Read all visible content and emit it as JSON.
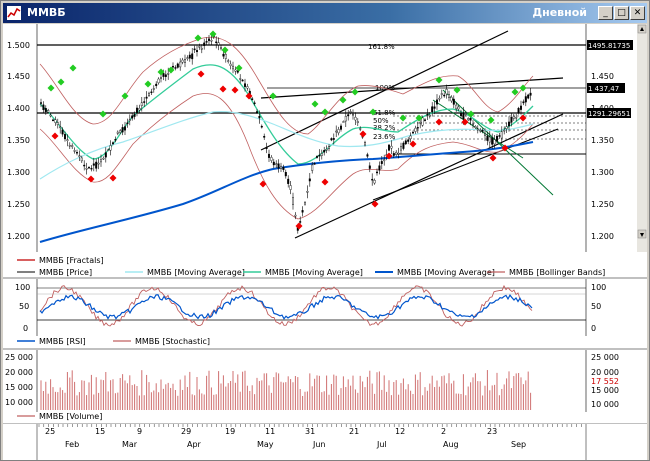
{
  "window": {
    "title": "ММВБ",
    "mode_label": "Дневной"
  },
  "window_buttons": {
    "minimize": "_",
    "maximize": "□",
    "close": "✕"
  },
  "price_panel": {
    "y_ticks_left": [
      "1.500",
      "1.450",
      "1.400",
      "1.350",
      "1.300",
      "1.250",
      "1.200"
    ],
    "y_ticks_right": [
      "1.450",
      "1.400",
      "1.350",
      "1.300",
      "1.250",
      "1.200"
    ],
    "value_boxes": [
      "1495.81735",
      "1 437,47",
      "1291.29651"
    ],
    "fib_labels": [
      "161.8%",
      "100%",
      "61.8%",
      "50%",
      "38.2%",
      "23.6%"
    ],
    "legend": [
      {
        "label": "ММВБ [Fractals]",
        "color": "#c00000"
      },
      {
        "label": "ММВБ [Price]",
        "color": "#000000"
      },
      {
        "label": "ММВБ [Moving Average]",
        "color": "#a0e8f0"
      },
      {
        "label": "ММВБ [Moving Average]",
        "color": "#33cc99"
      },
      {
        "label": "ММВБ [Moving Average]",
        "color": "#0055cc"
      },
      {
        "label": "ММВБ [Bollinger Bands]",
        "color": "#c06060"
      }
    ]
  },
  "osc_panel": {
    "y_ticks_left": [
      "100",
      "50",
      "0"
    ],
    "y_ticks_right": [
      "100",
      "50",
      "0"
    ],
    "legend": [
      {
        "label": "ММВБ [RSI]",
        "color": "#0055cc"
      },
      {
        "label": "ММВБ [Stochastic]",
        "color": "#c06060"
      }
    ]
  },
  "volume_panel": {
    "y_ticks_left": [
      "25 000",
      "20 000",
      "15 000",
      "10 000"
    ],
    "y_ticks_right": [
      "25 000",
      "20 000",
      "17 552",
      "15 000",
      "10 000"
    ],
    "legend": [
      {
        "label": "ММВБ [Volume]",
        "color": "#c06060"
      }
    ]
  },
  "date_axis": {
    "days": [
      "25",
      "15",
      "9",
      "29",
      "19",
      "11",
      "31",
      "21",
      "12",
      "2",
      "23"
    ],
    "months": [
      "Feb",
      "Mar",
      "Apr",
      "May",
      "Jun",
      "Jul",
      "Aug",
      "Sep"
    ]
  },
  "colors": {
    "bull_marker": "#22cc22",
    "bear_marker": "#ee0000",
    "price": "#000000",
    "ma_fast": "#33cc99",
    "ma_mid": "#a0e8f0",
    "ma_slow": "#0055cc",
    "bollinger": "#c06060",
    "volume": "#d07070",
    "rsi": "#0055cc",
    "stochastic": "#c06060"
  }
}
